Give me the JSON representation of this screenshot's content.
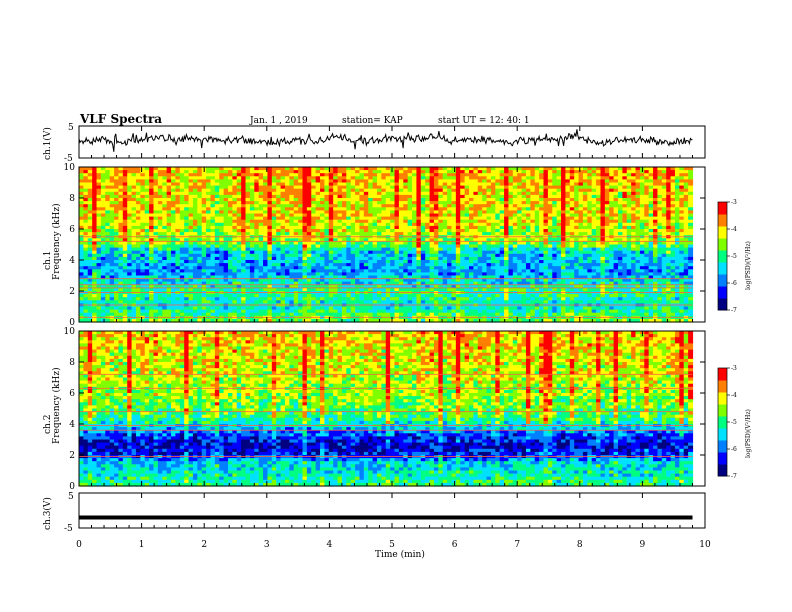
{
  "header": {
    "title": "VLF Spectra",
    "date": "Jan. 1 , 2019",
    "station": "station= KAP",
    "start": "start UT =  12: 40: 1"
  },
  "chart_data": [
    {
      "type": "line",
      "name": "ch1-waveform-panel",
      "ylabel": "ch.1(V)",
      "yticks": [
        "5",
        "-5"
      ],
      "ylim": [
        -5,
        5
      ],
      "xlim": [
        0,
        10
      ],
      "data_extent_min": 9.8,
      "trace_level": 0.7,
      "trace_amplitude": 1.2
    },
    {
      "type": "heatmap",
      "name": "ch1-spectrogram",
      "ylabel": "ch.1 Frequency (kHz)",
      "ylabel_line1": "ch.1",
      "ylabel_line2": "Frequency (kHz)",
      "yticks": [
        "0",
        "2",
        "4",
        "6",
        "8",
        "10"
      ],
      "ylim": [
        0,
        10
      ],
      "xlim": [
        0,
        10
      ],
      "data_extent_min": 9.8,
      "zlabel": "log(PSD)(V²/Hz)",
      "zticks": [
        "-3",
        "-4",
        "-5",
        "-6",
        "-7"
      ],
      "zlim": [
        -7,
        -3
      ],
      "log_psd_profile_by_khz": [
        {
          "f": 0.0,
          "z": -4.6
        },
        {
          "f": 0.5,
          "z": -4.9
        },
        {
          "f": 1.0,
          "z": -5.3
        },
        {
          "f": 2.0,
          "z": -5.0
        },
        {
          "f": 2.8,
          "z": -5.5
        },
        {
          "f": 3.2,
          "z": -5.8
        },
        {
          "f": 4.0,
          "z": -5.6
        },
        {
          "f": 4.6,
          "z": -5.5
        },
        {
          "f": 5.0,
          "z": -4.7
        },
        {
          "f": 6.0,
          "z": -4.3
        },
        {
          "f": 8.0,
          "z": -4.1
        },
        {
          "f": 10.0,
          "z": -4.0
        }
      ],
      "lines_khz": [
        0.3,
        1.1,
        1.9,
        2.2,
        2.4,
        2.8,
        5.2,
        5.5
      ]
    },
    {
      "type": "heatmap",
      "name": "ch2-spectrogram",
      "ylabel": "ch.2 Frequency (kHz)",
      "ylabel_line1": "ch.2",
      "ylabel_line2": "Frequency (kHz)",
      "yticks": [
        "0",
        "2",
        "4",
        "6",
        "8",
        "10"
      ],
      "ylim": [
        0,
        10
      ],
      "xlim": [
        0,
        10
      ],
      "data_extent_min": 9.8,
      "zlabel": "log(PSD)(V²/Hz)",
      "zticks": [
        "-3",
        "-4",
        "-5",
        "-6",
        "-7"
      ],
      "zlim": [
        -7,
        -3
      ],
      "log_psd_profile_by_khz": [
        {
          "f": 0.0,
          "z": -5.0
        },
        {
          "f": 0.8,
          "z": -5.3
        },
        {
          "f": 1.5,
          "z": -5.5
        },
        {
          "f": 2.0,
          "z": -6.3
        },
        {
          "f": 2.6,
          "z": -6.6
        },
        {
          "f": 3.2,
          "z": -6.2
        },
        {
          "f": 3.8,
          "z": -5.5
        },
        {
          "f": 4.5,
          "z": -4.9
        },
        {
          "f": 6.0,
          "z": -4.5
        },
        {
          "f": 8.0,
          "z": -4.2
        },
        {
          "f": 10.0,
          "z": -4.0
        }
      ],
      "lines_khz": [
        1.9,
        3.6,
        3.9,
        4.8,
        6.3,
        7.2
      ]
    },
    {
      "type": "line",
      "name": "ch3-waveform-panel",
      "ylabel": "ch.3(V)",
      "yticks": [
        "5",
        "-5"
      ],
      "ylim": [
        -5,
        5
      ],
      "xlim": [
        0,
        10
      ],
      "data_extent_min": 9.8,
      "trace_level": -2.0,
      "trace_amplitude": 0.0
    }
  ],
  "xaxis": {
    "label": "Time (min)",
    "ticks": [
      "0",
      "1",
      "2",
      "3",
      "4",
      "5",
      "6",
      "7",
      "8",
      "9",
      "10"
    ]
  },
  "colormap": [
    "#000080",
    "#0000ff",
    "#0080ff",
    "#00e0ff",
    "#00ff80",
    "#80ff00",
    "#ffff00",
    "#ff8000",
    "#ff0000",
    "#ffffff"
  ]
}
